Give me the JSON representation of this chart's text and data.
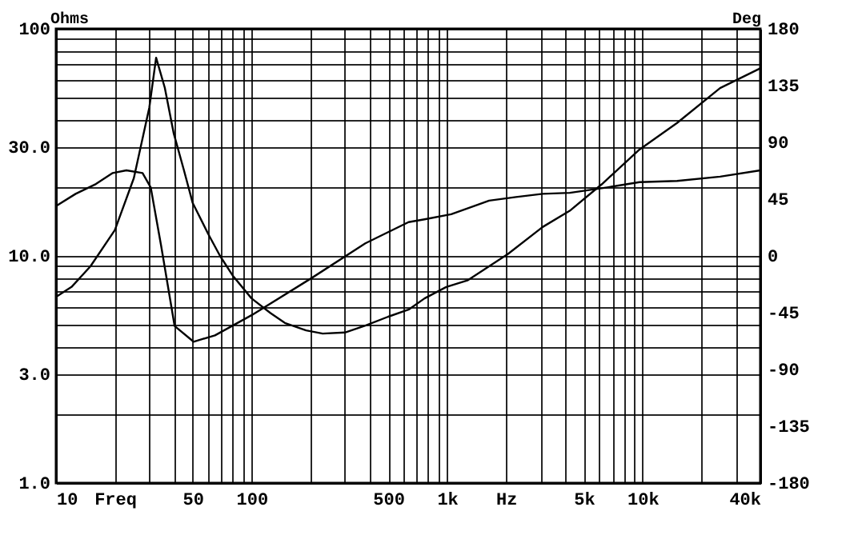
{
  "chart_data": {
    "type": "line",
    "xlabel": null,
    "ylabel": "Ohms",
    "y2label": "Deg",
    "log": "xy",
    "grid": true,
    "line_style": "solid",
    "marker": "none",
    "xlim": [
      10,
      40000
    ],
    "ylim": [
      1,
      100
    ],
    "y2lim": [
      -180,
      180
    ],
    "xticks": [
      {
        "value": 10,
        "label": "10"
      },
      {
        "value": 20,
        "label": "Freq"
      },
      {
        "value": 30,
        "label": null
      },
      {
        "value": 40,
        "label": null
      },
      {
        "value": 50,
        "label": "50"
      },
      {
        "value": 60,
        "label": null
      },
      {
        "value": 70,
        "label": null
      },
      {
        "value": 80,
        "label": null
      },
      {
        "value": 90,
        "label": null
      },
      {
        "value": 100,
        "label": "100"
      },
      {
        "value": 200,
        "label": null
      },
      {
        "value": 300,
        "label": null
      },
      {
        "value": 400,
        "label": null
      },
      {
        "value": 500,
        "label": "500"
      },
      {
        "value": 600,
        "label": null
      },
      {
        "value": 700,
        "label": null
      },
      {
        "value": 800,
        "label": null
      },
      {
        "value": 900,
        "label": null
      },
      {
        "value": 1000,
        "label": "1k"
      },
      {
        "value": 2000,
        "label": "Hz"
      },
      {
        "value": 3000,
        "label": null
      },
      {
        "value": 4000,
        "label": null
      },
      {
        "value": 5000,
        "label": "5k"
      },
      {
        "value": 6000,
        "label": null
      },
      {
        "value": 7000,
        "label": null
      },
      {
        "value": 8000,
        "label": null
      },
      {
        "value": 9000,
        "label": null
      },
      {
        "value": 10000,
        "label": "10k"
      },
      {
        "value": 20000,
        "label": null
      },
      {
        "value": 30000,
        "label": null
      },
      {
        "value": 40000,
        "label": "40k"
      }
    ],
    "yticks": [
      {
        "value": 1,
        "label": "1.0"
      },
      {
        "value": 2,
        "label": null
      },
      {
        "value": 3,
        "label": "3.0"
      },
      {
        "value": 4,
        "label": null
      },
      {
        "value": 5,
        "label": null
      },
      {
        "value": 6,
        "label": null
      },
      {
        "value": 7,
        "label": null
      },
      {
        "value": 8,
        "label": null
      },
      {
        "value": 9,
        "label": null
      },
      {
        "value": 10,
        "label": "10.0"
      },
      {
        "value": 20,
        "label": null
      },
      {
        "value": 30,
        "label": "30.0"
      },
      {
        "value": 40,
        "label": null
      },
      {
        "value": 50,
        "label": null
      },
      {
        "value": 60,
        "label": null
      },
      {
        "value": 70,
        "label": null
      },
      {
        "value": 80,
        "label": null
      },
      {
        "value": 90,
        "label": null
      },
      {
        "value": 100,
        "label": "100"
      }
    ],
    "y2ticks": [
      -180,
      -135,
      -90,
      -45,
      0,
      45,
      90,
      135,
      180
    ],
    "series": [
      {
        "color": "#000000",
        "x": [
          10,
          12,
          15,
          20,
          25,
          30,
          32.5,
          36,
          40,
          45,
          50,
          60,
          69,
          80,
          100,
          125,
          148,
          190,
          231,
          300,
          382,
          500,
          635,
          767,
          990,
          1270,
          2050,
          3080,
          4240,
          6190,
          9640,
          15000,
          24900,
          40000
        ],
        "values": [
          6.6,
          7.3,
          9,
          13,
          22,
          45,
          74.6,
          55,
          34.6,
          24,
          17.1,
          12.5,
          10,
          8.2,
          6.5,
          5.6,
          5.07,
          4.7,
          4.55,
          4.6,
          4.93,
          5.4,
          5.8,
          6.5,
          7.3,
          7.8,
          10.2,
          13.4,
          15.8,
          20.7,
          29.4,
          38.5,
          54.8,
          67
        ]
      },
      {
        "color": "#000000",
        "axis": "y2",
        "x": [
          10,
          12.6,
          16,
          19.5,
          22.9,
          27.7,
          30.5,
          34.5,
          40.4,
          50.5,
          65,
          100,
          203,
          382,
          635,
          767,
          1050,
          1640,
          2250,
          3080,
          4240,
          6580,
          9640,
          15000,
          24900,
          40000
        ],
        "values": [
          39.5,
          49.2,
          57,
          65.7,
          67.8,
          65.7,
          54.3,
          7.8,
          -55.5,
          -68,
          -63,
          -47,
          -17.5,
          10,
          26.8,
          29,
          33,
          43.8,
          46.7,
          49.2,
          50,
          54.3,
          58.5,
          59.4,
          62.8,
          67.8
        ]
      }
    ]
  }
}
